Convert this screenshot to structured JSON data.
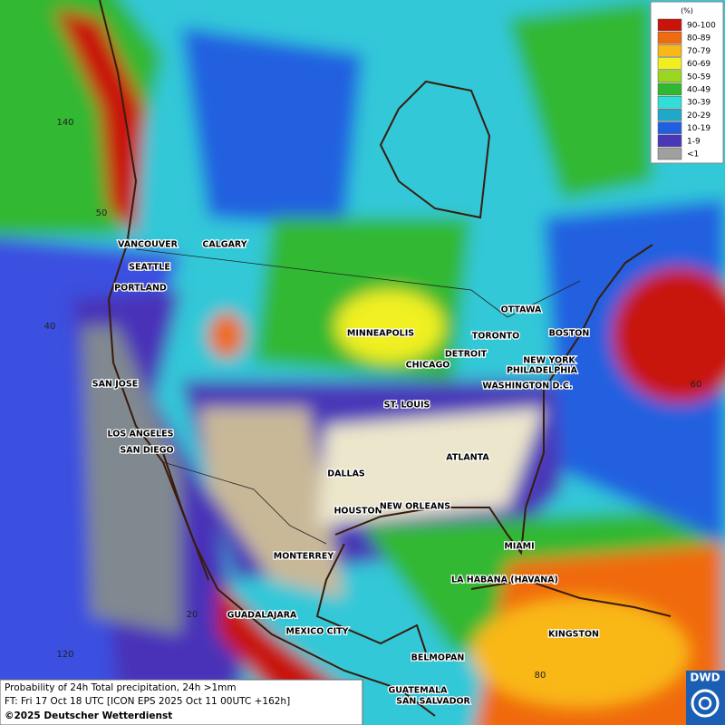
{
  "legend": {
    "title": "(%)",
    "items": [
      {
        "label": "90-100",
        "color": "#c8140a"
      },
      {
        "label": "80-89",
        "color": "#f06a10"
      },
      {
        "label": "70-79",
        "color": "#f9b818"
      },
      {
        "label": "60-69",
        "color": "#f0f020"
      },
      {
        "label": "50-59",
        "color": "#9ad820"
      },
      {
        "label": "40-49",
        "color": "#30b830"
      },
      {
        "label": "30-39",
        "color": "#30e0d8"
      },
      {
        "label": "20-29",
        "color": "#20a8c8"
      },
      {
        "label": "10-19",
        "color": "#2060e0"
      },
      {
        "label": "1-9",
        "color": "#4838b8"
      },
      {
        "label": "<1",
        "color": "#a0a0a0"
      }
    ]
  },
  "cities": [
    "VANCOUVER",
    "CALGARY",
    "SEATTLE",
    "PORTLAND",
    "MINNEAPOLIS",
    "OTTAWA",
    "TORONTO",
    "BOSTON",
    "DETROIT",
    "CHICAGO",
    "NEW YORK",
    "PHILADELPHIA",
    "WASHINGTON D.C.",
    "SAN JOSE",
    "ST. LOUIS",
    "LOS ANGELES",
    "SAN DIEGO",
    "DALLAS",
    "ATLANTA",
    "HOUSTON",
    "NEW ORLEANS",
    "MIAMI",
    "MONTERREY",
    "LA HABANA (HAVANA)",
    "GUADALAJARA",
    "MEXICO CITY",
    "KINGSTON",
    "BELMOPAN",
    "GUATEMALA",
    "SAN SALVADOR"
  ],
  "graticule": [
    "140",
    "50",
    "40",
    "20",
    "120",
    "60",
    "80"
  ],
  "caption": {
    "line1": "Probability of 24h Total precipitation, 24h >1mm",
    "line2": "FT: Fri 17 Oct 18 UTC [ICON EPS 2025 Oct 11 00UTC +162h]",
    "line3": "©2025 Deutscher Wetterdienst"
  },
  "logo": "DWD"
}
